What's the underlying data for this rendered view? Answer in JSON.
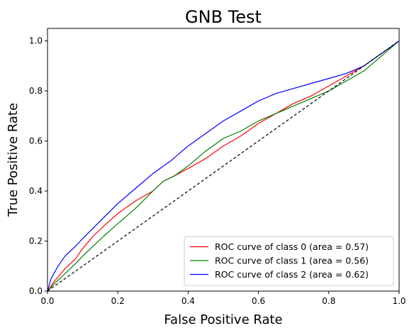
{
  "chart_data": {
    "type": "line",
    "title": "GNB Test",
    "xlabel": "False Positive Rate",
    "ylabel": "True Positive Rate",
    "xlim": [
      0.0,
      1.0
    ],
    "ylim": [
      0.0,
      1.05
    ],
    "x_ticks": [
      "0.0",
      "0.2",
      "0.4",
      "0.6",
      "0.8",
      "1.0"
    ],
    "y_ticks": [
      "0.0",
      "0.2",
      "0.4",
      "0.6",
      "0.8",
      "1.0"
    ],
    "grid": false,
    "legend_position": "lower-right",
    "series": [
      {
        "name": "ROC curve of class 0 (area = 0.57)",
        "color": "#ff0000",
        "x": [
          0.0,
          0.02,
          0.05,
          0.08,
          0.1,
          0.13,
          0.16,
          0.2,
          0.25,
          0.3,
          0.33,
          0.36,
          0.4,
          0.45,
          0.5,
          0.55,
          0.6,
          0.65,
          0.7,
          0.75,
          0.8,
          0.85,
          0.9,
          0.95,
          1.0
        ],
        "y": [
          0.0,
          0.04,
          0.09,
          0.13,
          0.17,
          0.22,
          0.26,
          0.31,
          0.36,
          0.4,
          0.44,
          0.46,
          0.49,
          0.53,
          0.58,
          0.62,
          0.67,
          0.71,
          0.75,
          0.78,
          0.82,
          0.86,
          0.9,
          0.95,
          1.0
        ]
      },
      {
        "name": "ROC curve of class 1 (area = 0.56)",
        "color": "#008000",
        "x": [
          0.0,
          0.02,
          0.05,
          0.08,
          0.1,
          0.13,
          0.16,
          0.2,
          0.25,
          0.3,
          0.33,
          0.36,
          0.4,
          0.45,
          0.5,
          0.55,
          0.6,
          0.65,
          0.7,
          0.75,
          0.8,
          0.85,
          0.9,
          0.95,
          1.0
        ],
        "y": [
          0.0,
          0.03,
          0.07,
          0.11,
          0.14,
          0.18,
          0.22,
          0.27,
          0.33,
          0.4,
          0.44,
          0.46,
          0.5,
          0.56,
          0.61,
          0.64,
          0.68,
          0.71,
          0.74,
          0.77,
          0.8,
          0.84,
          0.88,
          0.94,
          1.0
        ]
      },
      {
        "name": "ROC curve of class 2 (area = 0.62)",
        "color": "#0000ff",
        "x": [
          0.0,
          0.01,
          0.03,
          0.05,
          0.08,
          0.1,
          0.15,
          0.2,
          0.25,
          0.3,
          0.35,
          0.4,
          0.45,
          0.5,
          0.55,
          0.6,
          0.65,
          0.7,
          0.75,
          0.8,
          0.85,
          0.9,
          0.95,
          1.0
        ],
        "y": [
          0.0,
          0.05,
          0.1,
          0.14,
          0.18,
          0.21,
          0.28,
          0.35,
          0.41,
          0.47,
          0.52,
          0.58,
          0.63,
          0.68,
          0.72,
          0.76,
          0.79,
          0.81,
          0.83,
          0.85,
          0.87,
          0.9,
          0.95,
          1.0
        ]
      },
      {
        "name": "",
        "color": "#000000",
        "dashed": true,
        "x": [
          0.0,
          1.0
        ],
        "y": [
          0.0,
          1.0
        ]
      }
    ]
  }
}
